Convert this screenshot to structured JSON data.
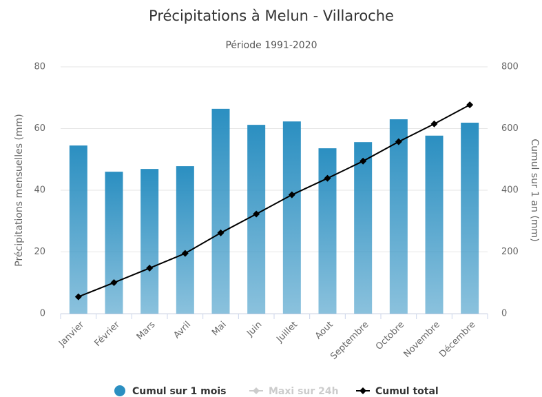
{
  "chart_data": {
    "type": "bar_line",
    "title": "Précipitations à Melun - Villaroche",
    "subtitle": "Période 1991-2020",
    "y_label": "Précipitations mensuelles (mm)",
    "y2_label": "Cumul sur 1 an (mm)",
    "categories": [
      "Janvier",
      "Février",
      "Mars",
      "Avril",
      "Mai",
      "Juin",
      "Juillet",
      "Aout",
      "Septembre",
      "Octobre",
      "Novembre",
      "Décembre"
    ],
    "series": [
      {
        "name": "Cumul sur 1 mois",
        "type": "bar",
        "color": "#2b8fc1",
        "visible": true,
        "values": [
          54.5,
          46.0,
          46.9,
          47.8,
          66.4,
          61.2,
          62.3,
          53.6,
          55.6,
          63.0,
          57.7,
          61.9
        ]
      },
      {
        "name": "Maxi sur 24h",
        "type": "line",
        "color": "#cccccc",
        "visible": false,
        "values": [
          null,
          null,
          null,
          null,
          null,
          null,
          null,
          null,
          null,
          null,
          null,
          null
        ]
      },
      {
        "name": "Cumul total",
        "type": "line",
        "color": "#000000",
        "visible": true,
        "axis": "y2",
        "values": [
          54.5,
          100.5,
          147.4,
          195.2,
          261.6,
          322.8,
          385.1,
          438.7,
          494.3,
          557.3,
          615.0,
          676.9
        ]
      }
    ],
    "ylim": [
      0,
      80
    ],
    "yticks": [
      0,
      20,
      40,
      60,
      80
    ],
    "y2lim": [
      0,
      800
    ],
    "y2ticks": [
      0,
      200,
      400,
      600,
      800
    ],
    "grid": true,
    "legend": "bottom"
  }
}
